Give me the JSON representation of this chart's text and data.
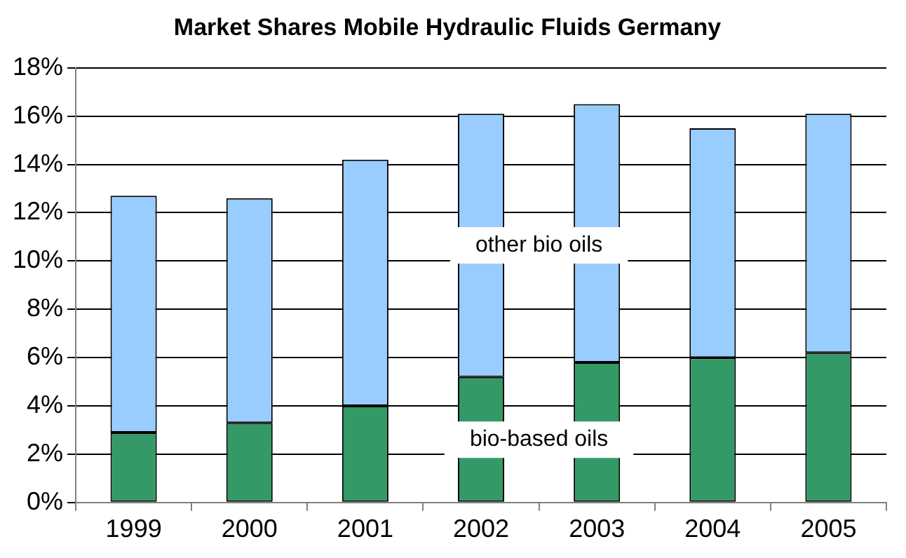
{
  "chart_data": {
    "type": "bar",
    "title": "Market Shares Mobile Hydraulic Fluids Germany",
    "categories": [
      "1999",
      "2000",
      "2001",
      "2002",
      "2003",
      "2004",
      "2005"
    ],
    "stacked": true,
    "legend": false,
    "grid": "y",
    "series": [
      {
        "name": "bio-based oils",
        "color": "#339966",
        "values": [
          2.9,
          3.3,
          4.0,
          5.2,
          5.8,
          6.0,
          6.2
        ]
      },
      {
        "name": "other bio oils",
        "color": "#99ccff",
        "values": [
          9.8,
          9.3,
          10.2,
          10.9,
          10.7,
          9.5,
          9.9
        ]
      }
    ],
    "ylim": [
      0,
      18
    ],
    "yticks": [
      {
        "value": 0,
        "label": "0%"
      },
      {
        "value": 2,
        "label": "2%"
      },
      {
        "value": 4,
        "label": "4%"
      },
      {
        "value": 6,
        "label": "6%"
      },
      {
        "value": 8,
        "label": "8%"
      },
      {
        "value": 10,
        "label": "10%"
      },
      {
        "value": 12,
        "label": "12%"
      },
      {
        "value": 14,
        "label": "14%"
      },
      {
        "value": 16,
        "label": "16%"
      },
      {
        "value": 18,
        "label": "18%"
      }
    ]
  }
}
